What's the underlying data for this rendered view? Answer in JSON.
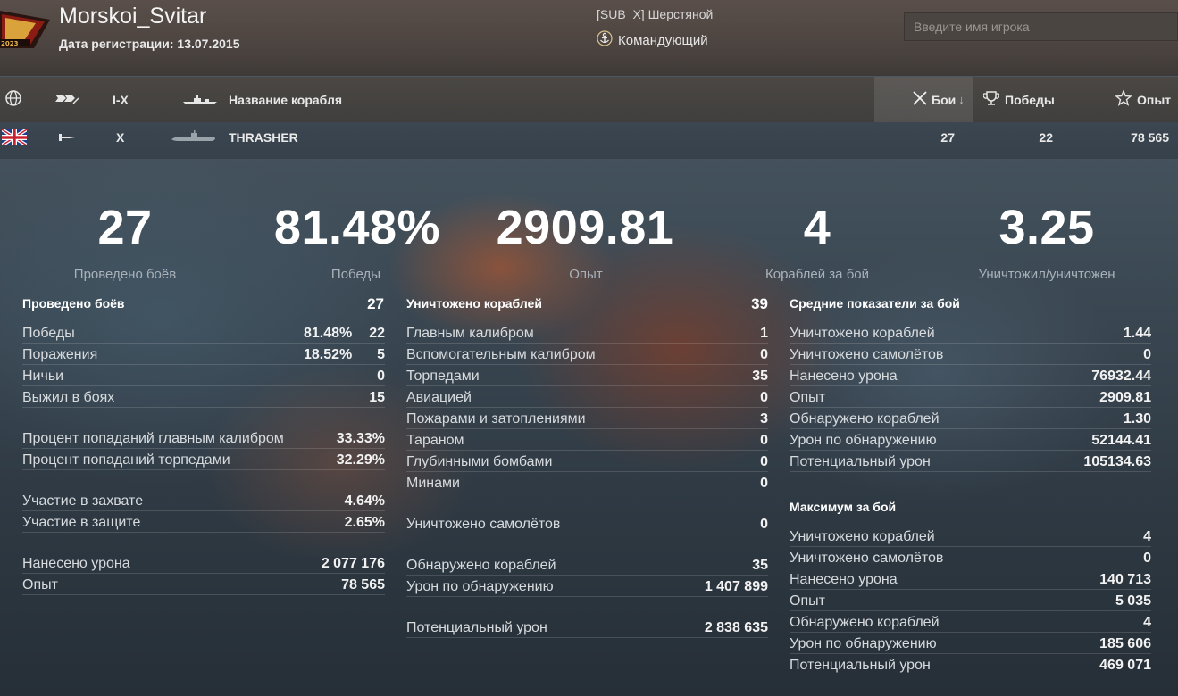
{
  "header": {
    "player_name": "Morskoi_Svitar",
    "registration": "Дата регистрации: 13.07.2015",
    "clan": "[SUB_X] Шерстяной",
    "rank": "Командующий",
    "emblem_text": "2023",
    "search_placeholder": "Введите имя игрока"
  },
  "columns": {
    "tier": "I-X",
    "ship_name": "Название корабля",
    "battles": "Бои",
    "wins": "Победы",
    "xp": "Опыт"
  },
  "ship": {
    "nation": "UK",
    "tier": "X",
    "name": "THRASHER",
    "battles": "27",
    "wins": "22",
    "xp": "78 565"
  },
  "summary": [
    {
      "value": "27",
      "label": "Проведено боёв"
    },
    {
      "value": "81.48%",
      "label": "Победы"
    },
    {
      "value": "2909.81",
      "label": "Опыт"
    },
    {
      "value": "4",
      "label": "Кораблей за бой"
    },
    {
      "value": "3.25",
      "label": "Уничтожил/уничтожен"
    }
  ],
  "left": {
    "title": "Проведено боёв",
    "title_value": "27",
    "rows": [
      {
        "label": "Победы",
        "pct": "81.48%",
        "value": "22"
      },
      {
        "label": "Поражения",
        "pct": "18.52%",
        "value": "5"
      },
      {
        "label": "Ничьи",
        "value": "0"
      },
      {
        "label": "Выжил в боях",
        "value": "15"
      },
      {
        "label": "Процент попаданий главным калибром",
        "value": "33.33%"
      },
      {
        "label": "Процент попаданий торпедами",
        "value": "32.29%"
      },
      {
        "label": "Участие в захвате",
        "value": "4.64%"
      },
      {
        "label": "Участие в защите",
        "value": "2.65%"
      },
      {
        "label": "Нанесено урона",
        "value": "2 077 176"
      },
      {
        "label": "Опыт",
        "value": "78 565"
      }
    ]
  },
  "middle": {
    "title": "Уничтожено кораблей",
    "title_value": "39",
    "rows": [
      {
        "label": "Главным калибром",
        "value": "1"
      },
      {
        "label": "Вспомогательным калибром",
        "value": "0"
      },
      {
        "label": "Торпедами",
        "value": "35"
      },
      {
        "label": "Авиацией",
        "value": "0"
      },
      {
        "label": "Пожарами и затоплениями",
        "value": "3"
      },
      {
        "label": "Тараном",
        "value": "0"
      },
      {
        "label": "Глубинными бомбами",
        "value": "0"
      },
      {
        "label": "Минами",
        "value": "0"
      },
      {
        "label": "Уничтожено самолётов",
        "value": "0"
      },
      {
        "label": "Обнаружено кораблей",
        "value": "35"
      },
      {
        "label": "Урон по обнаружению",
        "value": "1 407 899"
      },
      {
        "label": "Потенциальный урон",
        "value": "2 838 635"
      }
    ]
  },
  "right": {
    "avg_title": "Средние показатели за бой",
    "avg_rows": [
      {
        "label": "Уничтожено кораблей",
        "value": "1.44"
      },
      {
        "label": "Уничтожено самолётов",
        "value": "0"
      },
      {
        "label": "Нанесено урона",
        "value": "76932.44"
      },
      {
        "label": "Опыт",
        "value": "2909.81"
      },
      {
        "label": "Обнаружено кораблей",
        "value": "1.30"
      },
      {
        "label": "Урон по обнаружению",
        "value": "52144.41"
      },
      {
        "label": "Потенциальный урон",
        "value": "105134.63"
      }
    ],
    "max_title": "Максимум за бой",
    "max_rows": [
      {
        "label": "Уничтожено кораблей",
        "value": "4"
      },
      {
        "label": "Уничтожено самолётов",
        "value": "0"
      },
      {
        "label": "Нанесено урона",
        "value": "140 713"
      },
      {
        "label": "Опыт",
        "value": "5 035"
      },
      {
        "label": "Обнаружено кораблей",
        "value": "4"
      },
      {
        "label": "Урон по обнаружению",
        "value": "185 606"
      },
      {
        "label": "Потенциальный урон",
        "value": "469 071"
      }
    ]
  }
}
